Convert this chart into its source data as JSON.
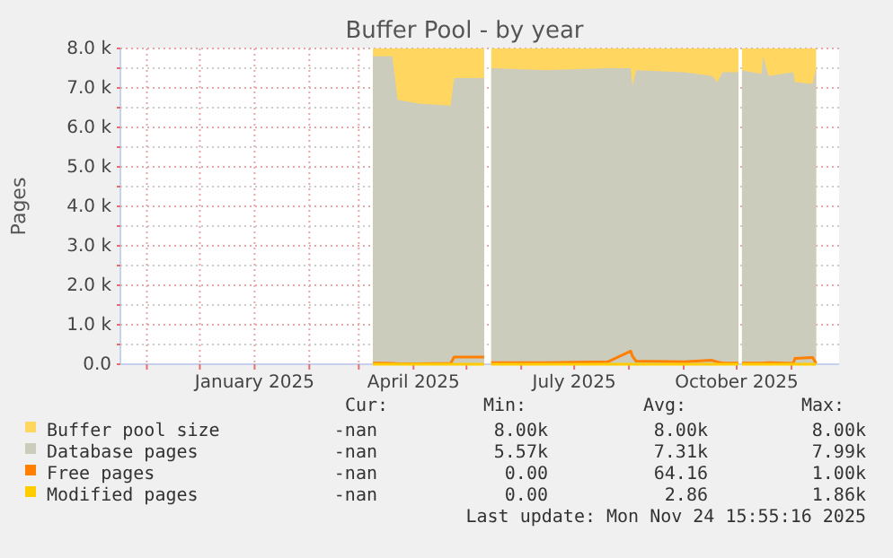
{
  "chart_data": {
    "type": "area",
    "title": "Buffer Pool - by year",
    "ylabel": "Pages",
    "x": [
      "2025-03-09",
      "2025-03-20",
      "2025-03-23",
      "2025-04-04",
      "2025-04-22",
      "2025-04-24",
      "2025-05-11",
      "2025-05-12",
      "2025-05-15",
      "2025-06-15",
      "2025-07-20",
      "2025-08-02",
      "2025-08-03",
      "2025-08-05",
      "2025-09-01",
      "2025-09-17",
      "2025-09-20",
      "2025-09-23",
      "2025-10-02",
      "2025-10-03",
      "2025-10-04",
      "2025-10-15",
      "2025-10-16",
      "2025-10-19",
      "2025-11-02",
      "2025-11-03",
      "2025-11-13",
      "2025-11-15"
    ],
    "series": [
      {
        "name": "Buffer pool size",
        "color": "#ffd660",
        "values": [
          8000,
          8000,
          8000,
          8000,
          8000,
          8000,
          8000,
          null,
          8000,
          8000,
          8000,
          8000,
          8000,
          8000,
          8000,
          8000,
          8000,
          8000,
          8000,
          null,
          8000,
          8000,
          8000,
          8000,
          8000,
          8000,
          8000,
          8000
        ]
      },
      {
        "name": "Database pages",
        "color": "#ccccbc",
        "values": [
          7800,
          7800,
          6700,
          6600,
          6550,
          7250,
          7250,
          null,
          7500,
          7450,
          7500,
          7500,
          7050,
          7450,
          7400,
          7300,
          7150,
          7400,
          7400,
          null,
          7450,
          7350,
          7800,
          7300,
          7400,
          7150,
          7100,
          7500
        ]
      },
      {
        "name": "Free pages",
        "type": "line",
        "color": "#ff7f00",
        "values": [
          30,
          20,
          10,
          10,
          20,
          180,
          180,
          null,
          40,
          40,
          60,
          330,
          200,
          80,
          60,
          100,
          60,
          30,
          30,
          null,
          30,
          30,
          30,
          40,
          20,
          150,
          170,
          20
        ]
      },
      {
        "name": "Modified pages",
        "type": "line",
        "color": "#ffcc00",
        "values": [
          0,
          0,
          0,
          0,
          0,
          0,
          0,
          null,
          0,
          0,
          0,
          0,
          0,
          0,
          0,
          0,
          0,
          0,
          0,
          null,
          0,
          0,
          0,
          0,
          0,
          0,
          0,
          0
        ]
      }
    ],
    "xlim": [
      "2024-10-17",
      "2025-11-28"
    ],
    "xticks": [
      {
        "value": "2024-11-01",
        "label": null
      },
      {
        "value": "2024-12-01",
        "label": null
      },
      {
        "value": "2025-01-01",
        "label": "January 2025"
      },
      {
        "value": "2025-02-01",
        "label": null
      },
      {
        "value": "2025-03-01",
        "label": null
      },
      {
        "value": "2025-04-01",
        "label": "April 2025"
      },
      {
        "value": "2025-05-01",
        "label": null
      },
      {
        "value": "2025-06-01",
        "label": null
      },
      {
        "value": "2025-07-01",
        "label": "July 2025"
      },
      {
        "value": "2025-08-01",
        "label": null
      },
      {
        "value": "2025-09-01",
        "label": null
      },
      {
        "value": "2025-10-01",
        "label": "October 2025"
      },
      {
        "value": "2025-11-01",
        "label": null
      }
    ],
    "ylim": [
      0,
      8000
    ],
    "yticks": [
      {
        "value": 0,
        "label": "0.0"
      },
      {
        "value": 500,
        "label": null
      },
      {
        "value": 1000,
        "label": "1.0 k"
      },
      {
        "value": 1500,
        "label": null
      },
      {
        "value": 2000,
        "label": "2.0 k"
      },
      {
        "value": 2500,
        "label": null
      },
      {
        "value": 3000,
        "label": "3.0 k"
      },
      {
        "value": 3500,
        "label": null
      },
      {
        "value": 4000,
        "label": "4.0 k"
      },
      {
        "value": 4500,
        "label": null
      },
      {
        "value": 5000,
        "label": "5.0 k"
      },
      {
        "value": 5500,
        "label": null
      },
      {
        "value": 6000,
        "label": "6.0 k"
      },
      {
        "value": 6500,
        "label": null
      },
      {
        "value": 7000,
        "label": "7.0 k"
      },
      {
        "value": 7500,
        "label": null
      },
      {
        "value": 8000,
        "label": "8.0 k"
      }
    ],
    "grid": true,
    "legend": "bottom",
    "annotations": [
      "Cur:",
      "Min:",
      "Avg:",
      "Max:",
      "-nan",
      "8.00k",
      "8.00k",
      "8.00k",
      "-nan",
      "5.57k",
      "7.31k",
      "7.99k",
      "-nan",
      "0.00",
      "64.16",
      "1.00k",
      "-nan",
      "0.00",
      "2.86",
      "1.86k",
      "Last update: Mon Nov 24 15:55:16 2025"
    ]
  }
}
